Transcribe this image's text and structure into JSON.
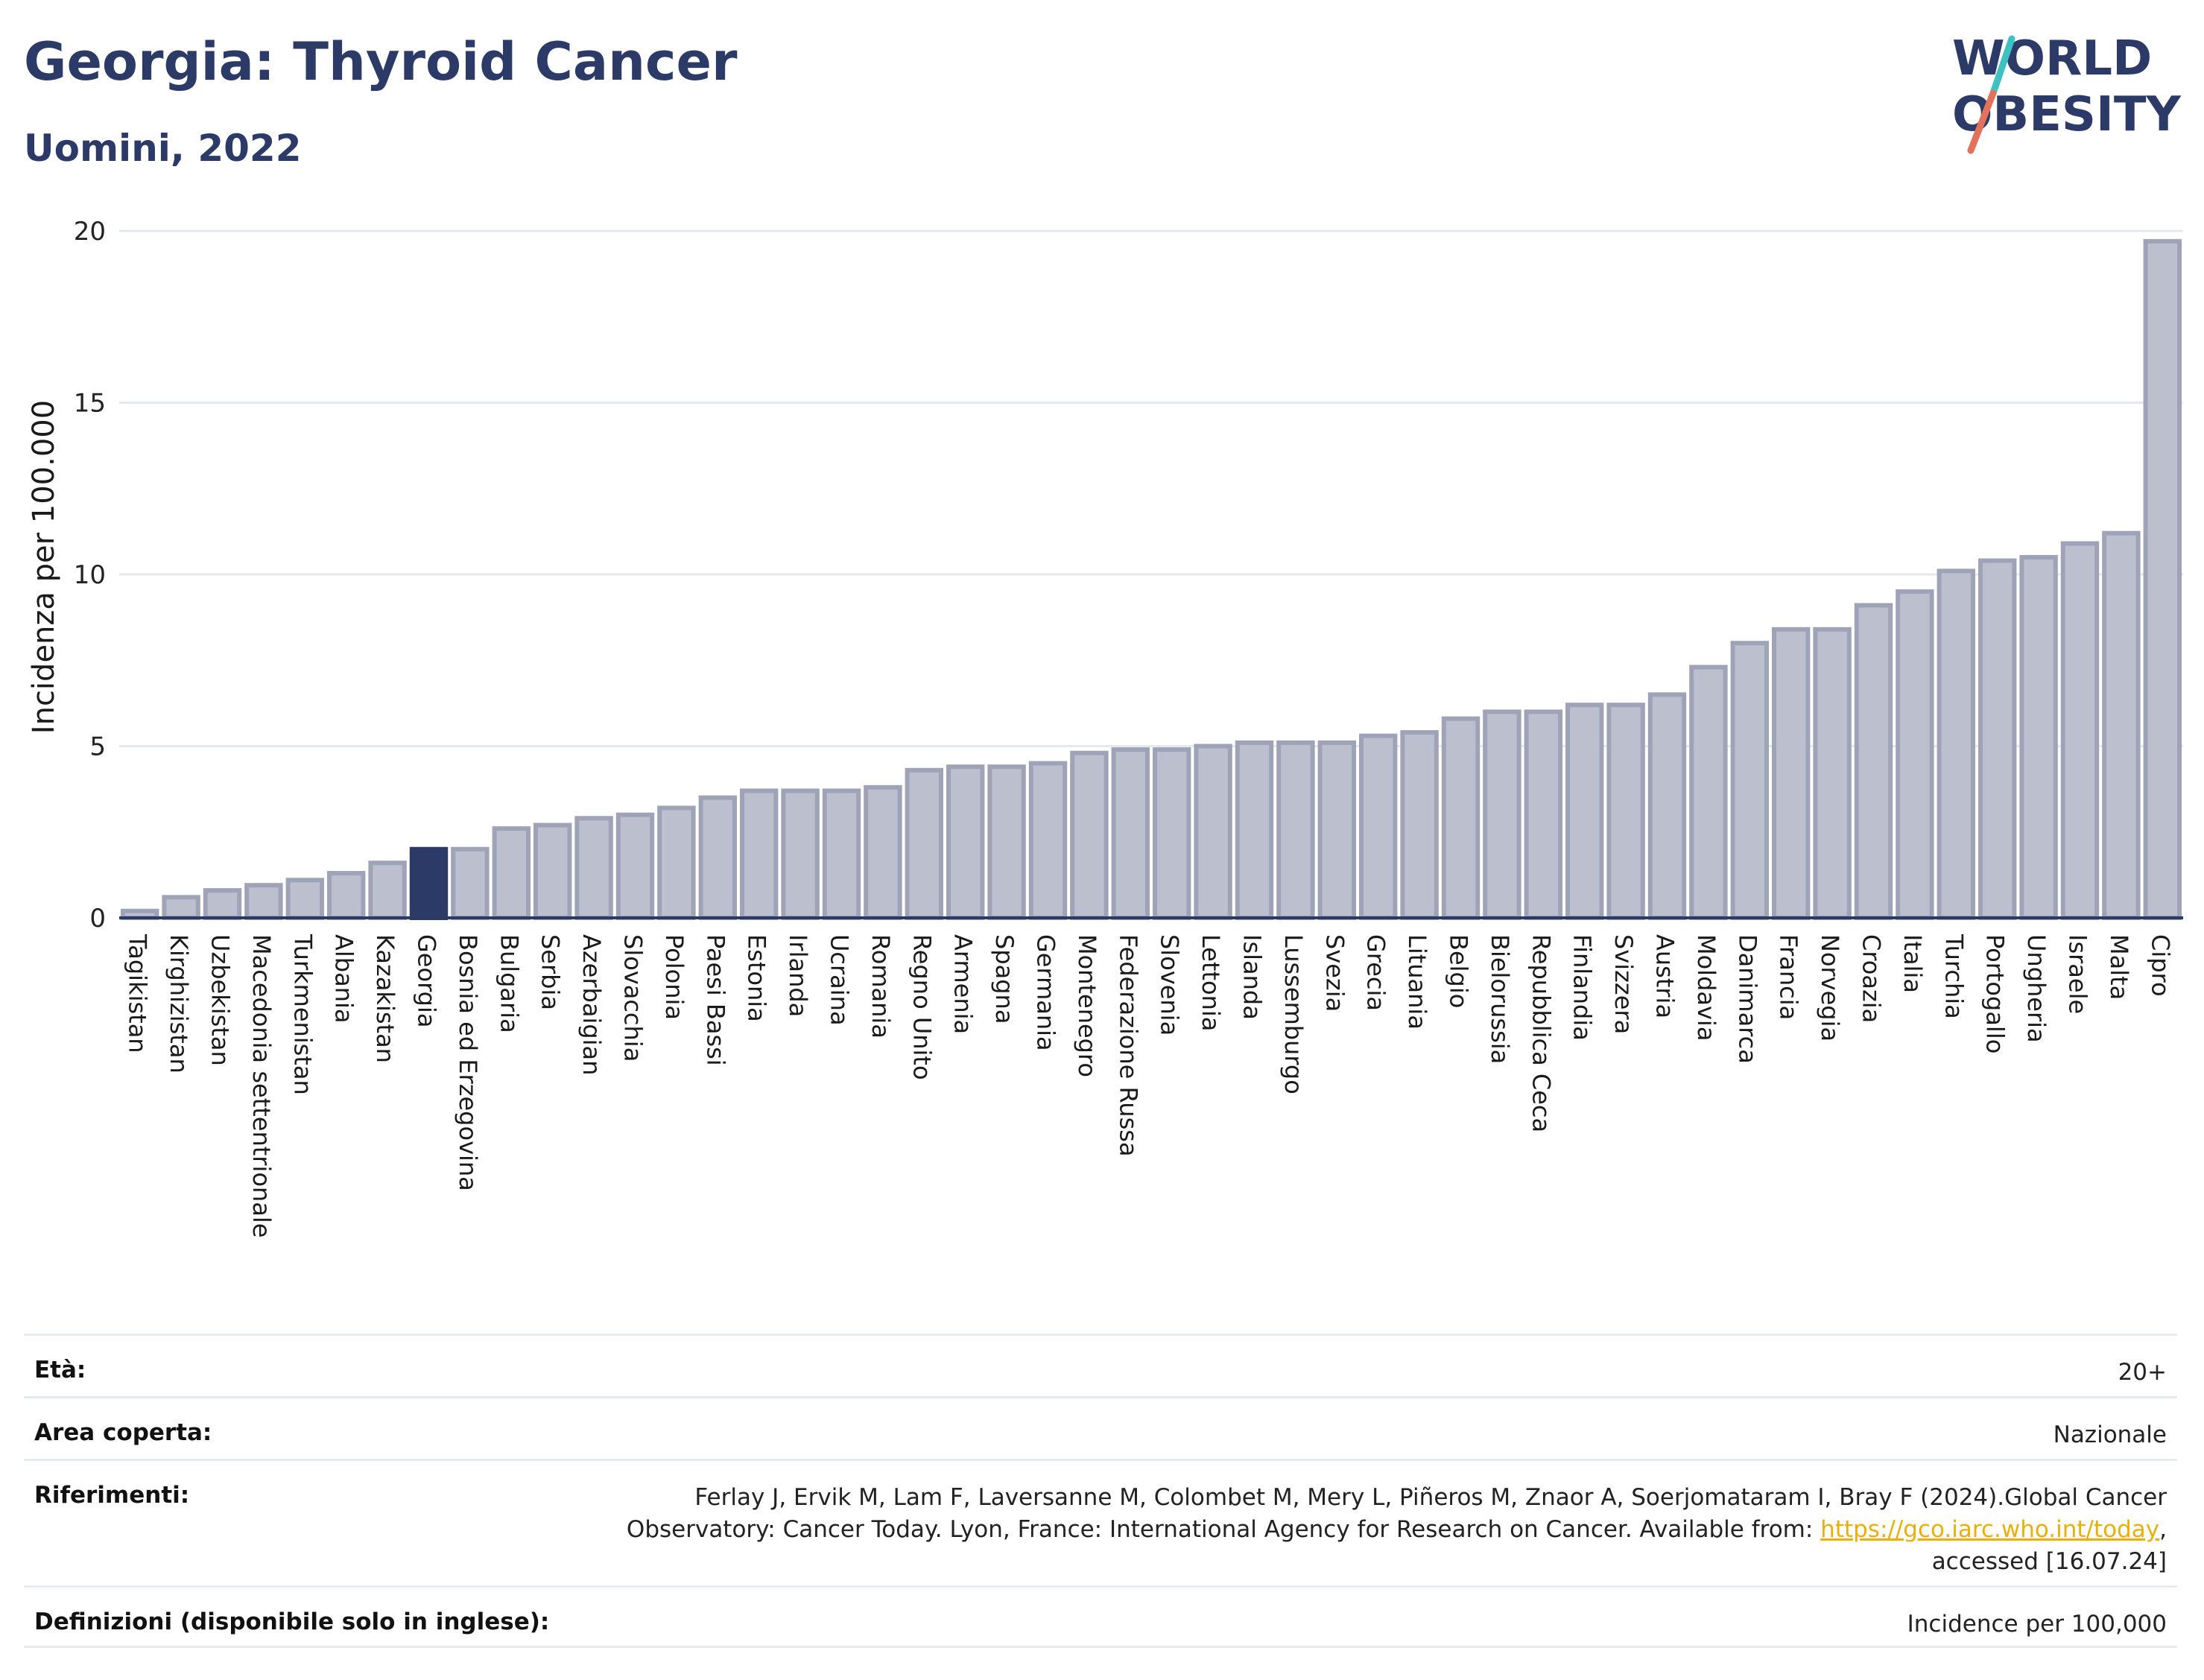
{
  "header": {
    "title": "Georgia: Thyroid Cancer",
    "subtitle": "Uomini, 2022"
  },
  "logo": {
    "line1": "WORLD",
    "line2": "OBESITY",
    "accent_colors": [
      "#3ec1c0",
      "#e2725b"
    ]
  },
  "chart_data": {
    "type": "bar",
    "title": "Georgia: Thyroid Cancer",
    "subtitle": "Uomini, 2022",
    "ylabel": "Incidenza per 100.000",
    "xlabel": "",
    "ylim": [
      0,
      20
    ],
    "yticks": [
      0,
      5,
      10,
      15,
      20
    ],
    "grid": true,
    "highlight": "Georgia",
    "colors": {
      "bar": "#bcc0ce",
      "bar_border": "#9ea3b8",
      "highlight": "#2b3a67",
      "grid": "#e5e9ef"
    },
    "categories": [
      "Tagikistan",
      "Kirghizistan",
      "Uzbekistan",
      "Macedonia settentrionale",
      "Turkmenistan",
      "Albania",
      "Kazakistan",
      "Georgia",
      "Bosnia ed Erzegovina",
      "Bulgaria",
      "Serbia",
      "Azerbaigian",
      "Slovacchia",
      "Polonia",
      "Paesi Bassi",
      "Estonia",
      "Irlanda",
      "Ucraina",
      "Romania",
      "Regno Unito",
      "Armenia",
      "Spagna",
      "Germania",
      "Montenegro",
      "Federazione Russa",
      "Slovenia",
      "Lettonia",
      "Islanda",
      "Lussemburgo",
      "Svezia",
      "Grecia",
      "Lituania",
      "Belgio",
      "Bielorussia",
      "Repubblica Ceca",
      "Finlandia",
      "Svizzera",
      "Austria",
      "Moldavia",
      "Danimarca",
      "Francia",
      "Norvegia",
      "Croazia",
      "Italia",
      "Turchia",
      "Portogallo",
      "Ungheria",
      "Israele",
      "Malta",
      "Cipro"
    ],
    "values": [
      0.2,
      0.6,
      0.8,
      0.95,
      1.1,
      1.3,
      1.6,
      2.0,
      2.0,
      2.6,
      2.7,
      2.9,
      3.0,
      3.2,
      3.5,
      3.7,
      3.7,
      3.7,
      3.8,
      4.3,
      4.4,
      4.4,
      4.5,
      4.8,
      4.9,
      4.9,
      5.0,
      5.1,
      5.1,
      5.1,
      5.3,
      5.4,
      5.8,
      6.0,
      6.0,
      6.2,
      6.2,
      6.5,
      7.3,
      8.0,
      8.4,
      8.4,
      9.1,
      9.5,
      10.1,
      10.4,
      10.5,
      10.9,
      11.2,
      19.7
    ]
  },
  "meta": {
    "age_label": "Età:",
    "age_value": "20+",
    "area_label": "Area coperta:",
    "area_value": "Nazionale",
    "ref_label": "Riferimenti:",
    "ref_line1": "Ferlay J, Ervik M, Lam F, Laversanne M, Colombet M, Mery L, Piñeros M, Znaor A, Soerjomataram I, Bray F (2024).Global Cancer",
    "ref_line2_pre": "Observatory: Cancer Today. Lyon, France: International Agency for Research on Cancer. Available from: ",
    "ref_link": "https://gco.iarc.who.int/today",
    "ref_line2_post": ",",
    "ref_line3": "accessed [16.07.24]",
    "def_label": "Definizioni (disponibile solo in inglese):",
    "def_value": "Incidence per 100,000"
  }
}
